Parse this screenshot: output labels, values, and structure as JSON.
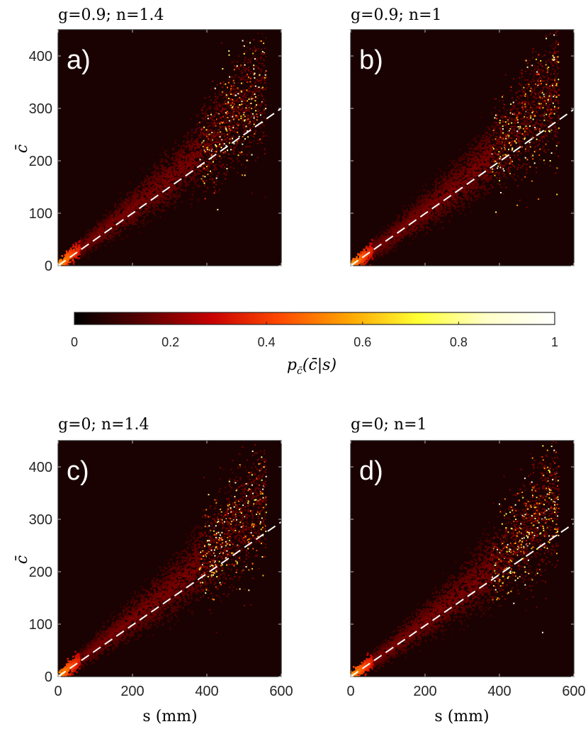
{
  "figure": {
    "colorbar": {
      "label": "p_c̄(c̄|s)",
      "label_main": "p",
      "label_sub": "c̄",
      "label_args": "(c̄|s)",
      "ticks": [
        "0",
        "0.2",
        "0.4",
        "0.6",
        "0.8",
        "1"
      ],
      "colormap": [
        "#000000",
        "#5a0000",
        "#c80000",
        "#ff4a00",
        "#ffa500",
        "#ffff33",
        "#ffffc8",
        "#ffffff"
      ]
    },
    "background_color": "#1a0202",
    "fit_line_color": "#ffffff"
  },
  "chart_data": [
    {
      "type": "heatmap",
      "panel_label": "a)",
      "title": "g=0.9; n=1.4",
      "xlabel": "",
      "ylabel": "c̄",
      "xlim": [
        0,
        600
      ],
      "ylim": [
        0,
        450
      ],
      "xticks": [
        "0",
        "200",
        "400",
        "600"
      ],
      "yticks": [
        "0",
        "100",
        "200",
        "300",
        "400"
      ],
      "show_xtick_labels": false,
      "show_ytick_labels": true,
      "fit_line": {
        "x": [
          0,
          600
        ],
        "y": [
          0,
          300
        ]
      },
      "ridge": {
        "x": [
          0,
          100,
          200,
          300,
          400,
          480
        ],
        "y": [
          0,
          55,
          110,
          165,
          230,
          290
        ]
      }
    },
    {
      "type": "heatmap",
      "panel_label": "b)",
      "title": "g=0.9; n=1",
      "xlabel": "",
      "ylabel": "",
      "xlim": [
        0,
        600
      ],
      "ylim": [
        0,
        450
      ],
      "xticks": [
        "0",
        "200",
        "400",
        "600"
      ],
      "yticks": [
        "0",
        "100",
        "200",
        "300",
        "400"
      ],
      "show_xtick_labels": false,
      "show_ytick_labels": false,
      "fit_line": {
        "x": [
          0,
          600
        ],
        "y": [
          0,
          298
        ]
      },
      "ridge": {
        "x": [
          0,
          100,
          200,
          300,
          400,
          480
        ],
        "y": [
          0,
          50,
          105,
          160,
          225,
          285
        ]
      }
    },
    {
      "type": "heatmap",
      "panel_label": "c)",
      "title": "g=0; n=1.4",
      "xlabel": "s (mm)",
      "ylabel": "c̄",
      "xlim": [
        0,
        600
      ],
      "ylim": [
        0,
        450
      ],
      "xticks": [
        "0",
        "200",
        "400",
        "600"
      ],
      "yticks": [
        "0",
        "100",
        "200",
        "300",
        "400"
      ],
      "show_xtick_labels": true,
      "show_ytick_labels": true,
      "fit_line": {
        "x": [
          0,
          600
        ],
        "y": [
          0,
          295
        ]
      },
      "ridge": {
        "x": [
          0,
          100,
          200,
          300,
          400,
          480
        ],
        "y": [
          0,
          55,
          110,
          165,
          225,
          285
        ]
      }
    },
    {
      "type": "heatmap",
      "panel_label": "d)",
      "title": "g=0; n=1",
      "xlabel": "s (mm)",
      "ylabel": "",
      "xlim": [
        0,
        600
      ],
      "ylim": [
        0,
        450
      ],
      "xticks": [
        "0",
        "200",
        "400",
        "600"
      ],
      "yticks": [
        "0",
        "100",
        "200",
        "300",
        "400"
      ],
      "show_xtick_labels": true,
      "show_ytick_labels": false,
      "fit_line": {
        "x": [
          0,
          600
        ],
        "y": [
          0,
          292
        ]
      },
      "ridge": {
        "x": [
          0,
          100,
          200,
          300,
          400,
          480
        ],
        "y": [
          0,
          50,
          105,
          160,
          220,
          280
        ]
      }
    }
  ]
}
